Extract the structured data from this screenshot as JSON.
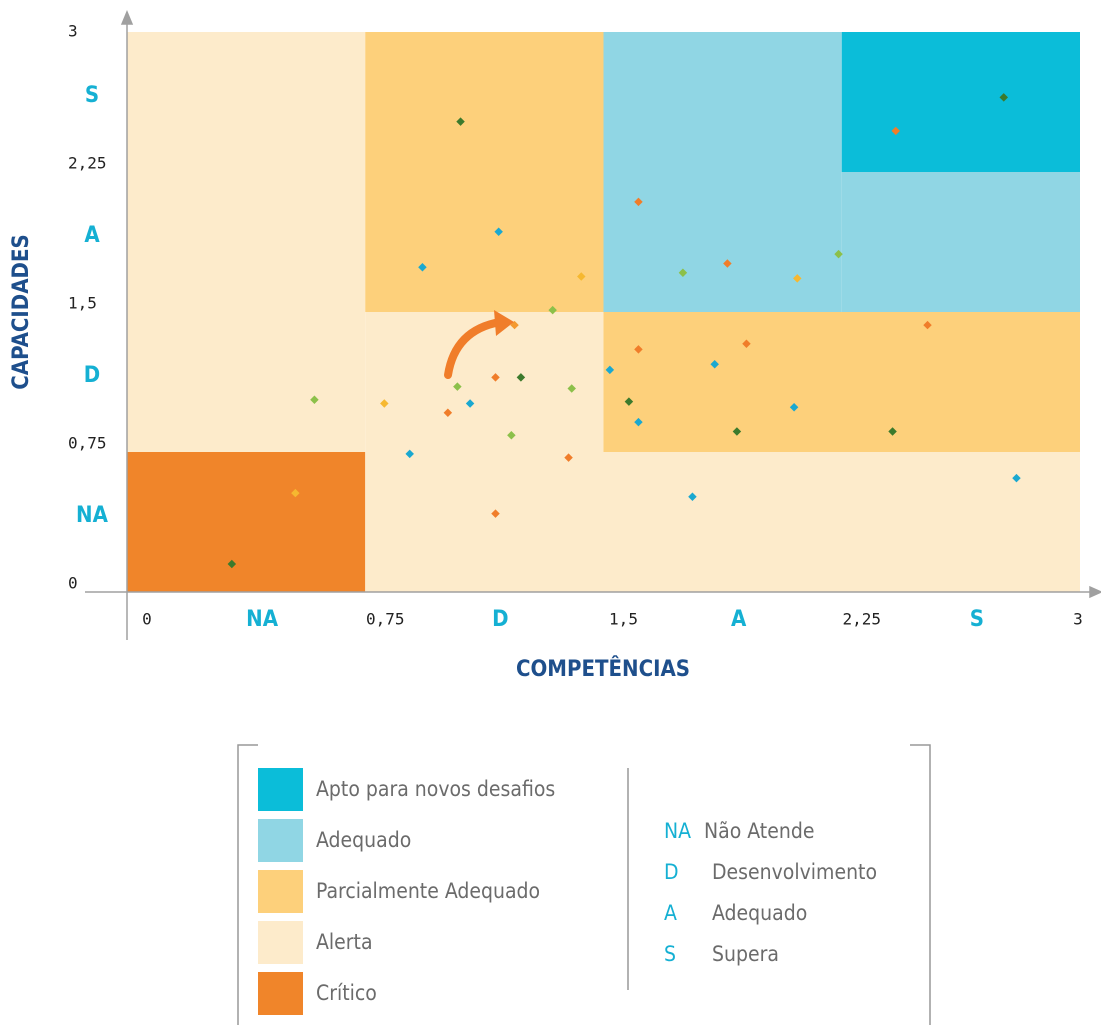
{
  "chart_data": {
    "type": "scatter",
    "xlabel": "COMPETÊNCIAS",
    "ylabel": "CAPACIDADES",
    "xlim": [
      0,
      3
    ],
    "ylim": [
      0,
      3
    ],
    "xticks": [
      0,
      {
        "value": 0.75,
        "label": "0,75"
      },
      {
        "value": 1.5,
        "label": "1,5"
      },
      {
        "value": 2.25,
        "label": "2,25"
      },
      3
    ],
    "yticks": [
      0,
      {
        "value": 0.75,
        "label": "0,75"
      },
      {
        "value": 1.5,
        "label": "1,5"
      },
      {
        "value": 2.25,
        "label": "2,25"
      },
      3
    ],
    "levels": [
      {
        "code": "NA",
        "name": "Não Atende"
      },
      {
        "code": "D",
        "name": "Desenvolvimento"
      },
      {
        "code": "A",
        "name": "Adequado"
      },
      {
        "code": "S",
        "name": "Supera"
      }
    ],
    "zones": [
      {
        "name": "Apto para novos desafios",
        "color": "#0bbdd9",
        "areas": [
          {
            "xlim": [
              2.25,
              3
            ],
            "ylim": [
              2.25,
              3
            ]
          }
        ]
      },
      {
        "name": "Adequado",
        "color": "#90d6e4",
        "areas": [
          {
            "xlim": [
              1.5,
              2.25
            ],
            "ylim": [
              1.5,
              3
            ]
          },
          {
            "xlim": [
              2.25,
              3
            ],
            "ylim": [
              1.5,
              2.25
            ]
          }
        ]
      },
      {
        "name": "Parcialmente Adequado",
        "color": "#fdd07b",
        "areas": [
          {
            "xlim": [
              0.75,
              1.5
            ],
            "ylim": [
              1.5,
              3
            ]
          },
          {
            "xlim": [
              1.5,
              3
            ],
            "ylim": [
              0.75,
              1.5
            ]
          }
        ]
      },
      {
        "name": "Alerta",
        "color": "#fdebcb",
        "areas": [
          {
            "xlim": [
              0,
              0.75
            ],
            "ylim": [
              0.75,
              3
            ]
          },
          {
            "xlim": [
              0.75,
              1.5
            ],
            "ylim": [
              0,
              1.5
            ]
          },
          {
            "xlim": [
              1.5,
              3
            ],
            "ylim": [
              0,
              0.75
            ]
          }
        ]
      },
      {
        "name": "Crítico",
        "color": "#f0852a",
        "areas": [
          {
            "xlim": [
              0,
              0.75
            ],
            "ylim": [
              0,
              0.75
            ]
          }
        ]
      }
    ],
    "x": [
      2.76,
      2.42,
      1.05,
      1.61,
      1.17,
      0.93,
      1.43,
      1.75,
      1.89,
      2.11,
      2.24,
      1.34,
      1.22,
      2.52,
      1.61,
      1.95,
      1.52,
      1.85,
      1.16,
      1.24,
      1.04,
      1.4,
      0.59,
      0.81,
      1.08,
      1.01,
      1.58,
      2.1,
      1.61,
      1.92,
      2.41,
      1.21,
      0.89,
      1.39,
      2.8,
      0.53,
      1.78,
      1.16,
      0.33
    ],
    "values": [
      2.65,
      2.47,
      2.52,
      2.09,
      1.93,
      1.74,
      1.69,
      1.71,
      1.76,
      1.68,
      1.81,
      1.51,
      1.43,
      1.43,
      1.3,
      1.33,
      1.19,
      1.22,
      1.15,
      1.15,
      1.1,
      1.09,
      1.03,
      1.01,
      1.01,
      0.96,
      1.02,
      0.99,
      0.91,
      0.86,
      0.86,
      0.84,
      0.74,
      0.72,
      0.61,
      0.53,
      0.51,
      0.42,
      0.15
    ],
    "point_colors": [
      "#3c7a2c",
      "#f07d2a",
      "#3c7a2c",
      "#f07d2a",
      "#1aa8d0",
      "#1aa8d0",
      "#f6b830",
      "#8cc04a",
      "#f07d2a",
      "#f6b830",
      "#8cc04a",
      "#8cc04a",
      "#f49a30",
      "#f07d2a",
      "#f07d2a",
      "#f07d2a",
      "#1aa8d0",
      "#1aa8d0",
      "#f07d2a",
      "#3c7a2c",
      "#8cc04a",
      "#8cc04a",
      "#8cc04a",
      "#f6b830",
      "#1aa8d0",
      "#f07d2a",
      "#3c7a2c",
      "#1aa8d0",
      "#1aa8d0",
      "#3c7a2c",
      "#3c7a2c",
      "#8cc04a",
      "#1aa8d0",
      "#f07d2a",
      "#1aa8d0",
      "#f6b830",
      "#1aa8d0",
      "#f07d2a",
      "#3c7a2c"
    ]
  }
}
